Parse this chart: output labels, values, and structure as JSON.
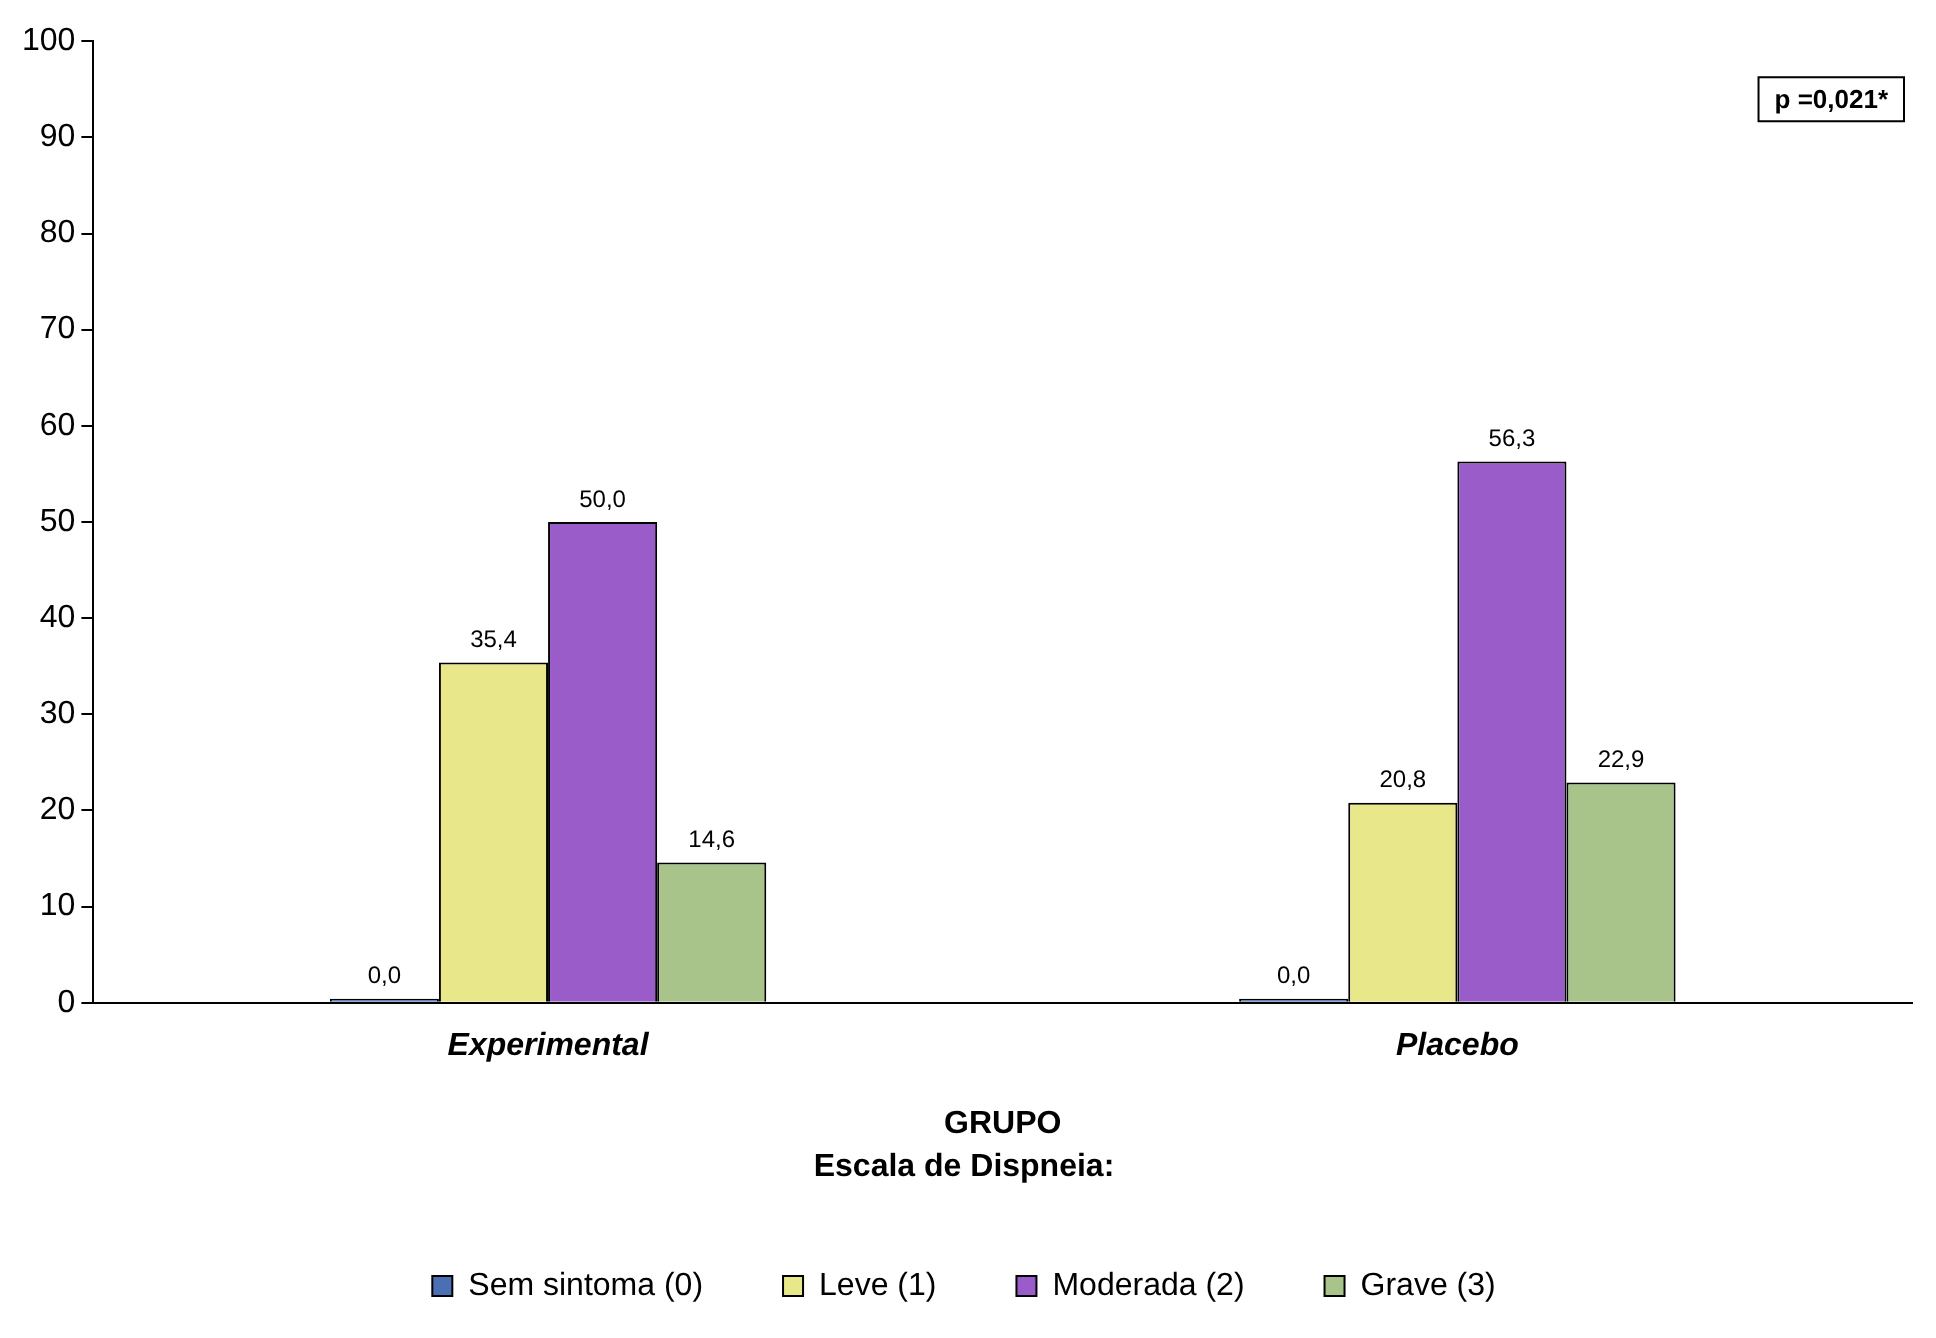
{
  "chart_data": {
    "type": "bar",
    "xlabel": "GRUPO",
    "legend_title": "Escala de Dispneia:",
    "categories": [
      "Experimental",
      "Placebo"
    ],
    "series": [
      {
        "name": "Sem sintoma (0)",
        "color": "#4a6fb5",
        "values": [
          0,
          0
        ],
        "value_labels": [
          "0,0",
          "0,0"
        ]
      },
      {
        "name": "Leve (1)",
        "color": "#e8e88a",
        "values": [
          35.4,
          20.8
        ],
        "value_labels": [
          "35,4",
          "20,8"
        ]
      },
      {
        "name": "Moderada (2)",
        "color": "#9a5cc8",
        "values": [
          50,
          56.3
        ],
        "value_labels": [
          "50,0",
          "56,3"
        ]
      },
      {
        "name": "Grave (3)",
        "color": "#a8c48a",
        "values": [
          14.6,
          22.9
        ],
        "value_labels": [
          "14,6",
          "22,9"
        ]
      }
    ],
    "ylim": [
      0,
      100
    ],
    "yticks": [
      0,
      10,
      20,
      30,
      40,
      50,
      60,
      70,
      80,
      90,
      100
    ],
    "grid": false,
    "legend": "bottom",
    "annotations": [
      "p =0,021*"
    ]
  }
}
